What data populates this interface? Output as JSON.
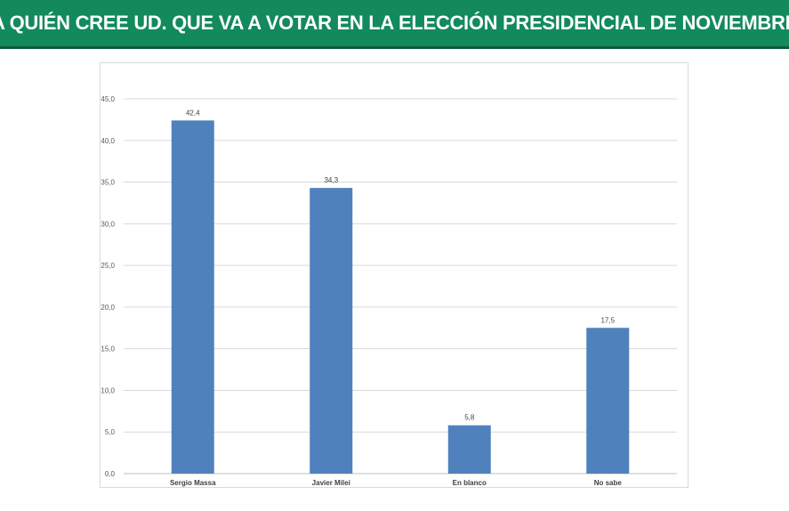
{
  "header": {
    "title": "¿A QUIÉN CREE UD. QUE VA A VOTAR EN LA ELECCIÓN PRESIDENCIAL DE NOVIEMBRE?",
    "bg_color": "#128a5c"
  },
  "chart_data": {
    "type": "bar",
    "categories": [
      "Sergio Massa",
      "Javier Milei",
      "En blanco",
      "No sabe"
    ],
    "values": [
      42.4,
      34.3,
      5.8,
      17.5
    ],
    "value_labels": [
      "42,4",
      "34,3",
      "5,8",
      "17,5"
    ],
    "yticks": [
      "0,0",
      "5,0",
      "10,0",
      "15,0",
      "20,0",
      "25,0",
      "30,0",
      "35,0",
      "40,0",
      "45,0"
    ],
    "ylim": [
      0,
      45
    ],
    "ytick_step": 5,
    "grid": true,
    "bar_color": "#4f81bd",
    "title": "",
    "xlabel": "",
    "ylabel": ""
  }
}
